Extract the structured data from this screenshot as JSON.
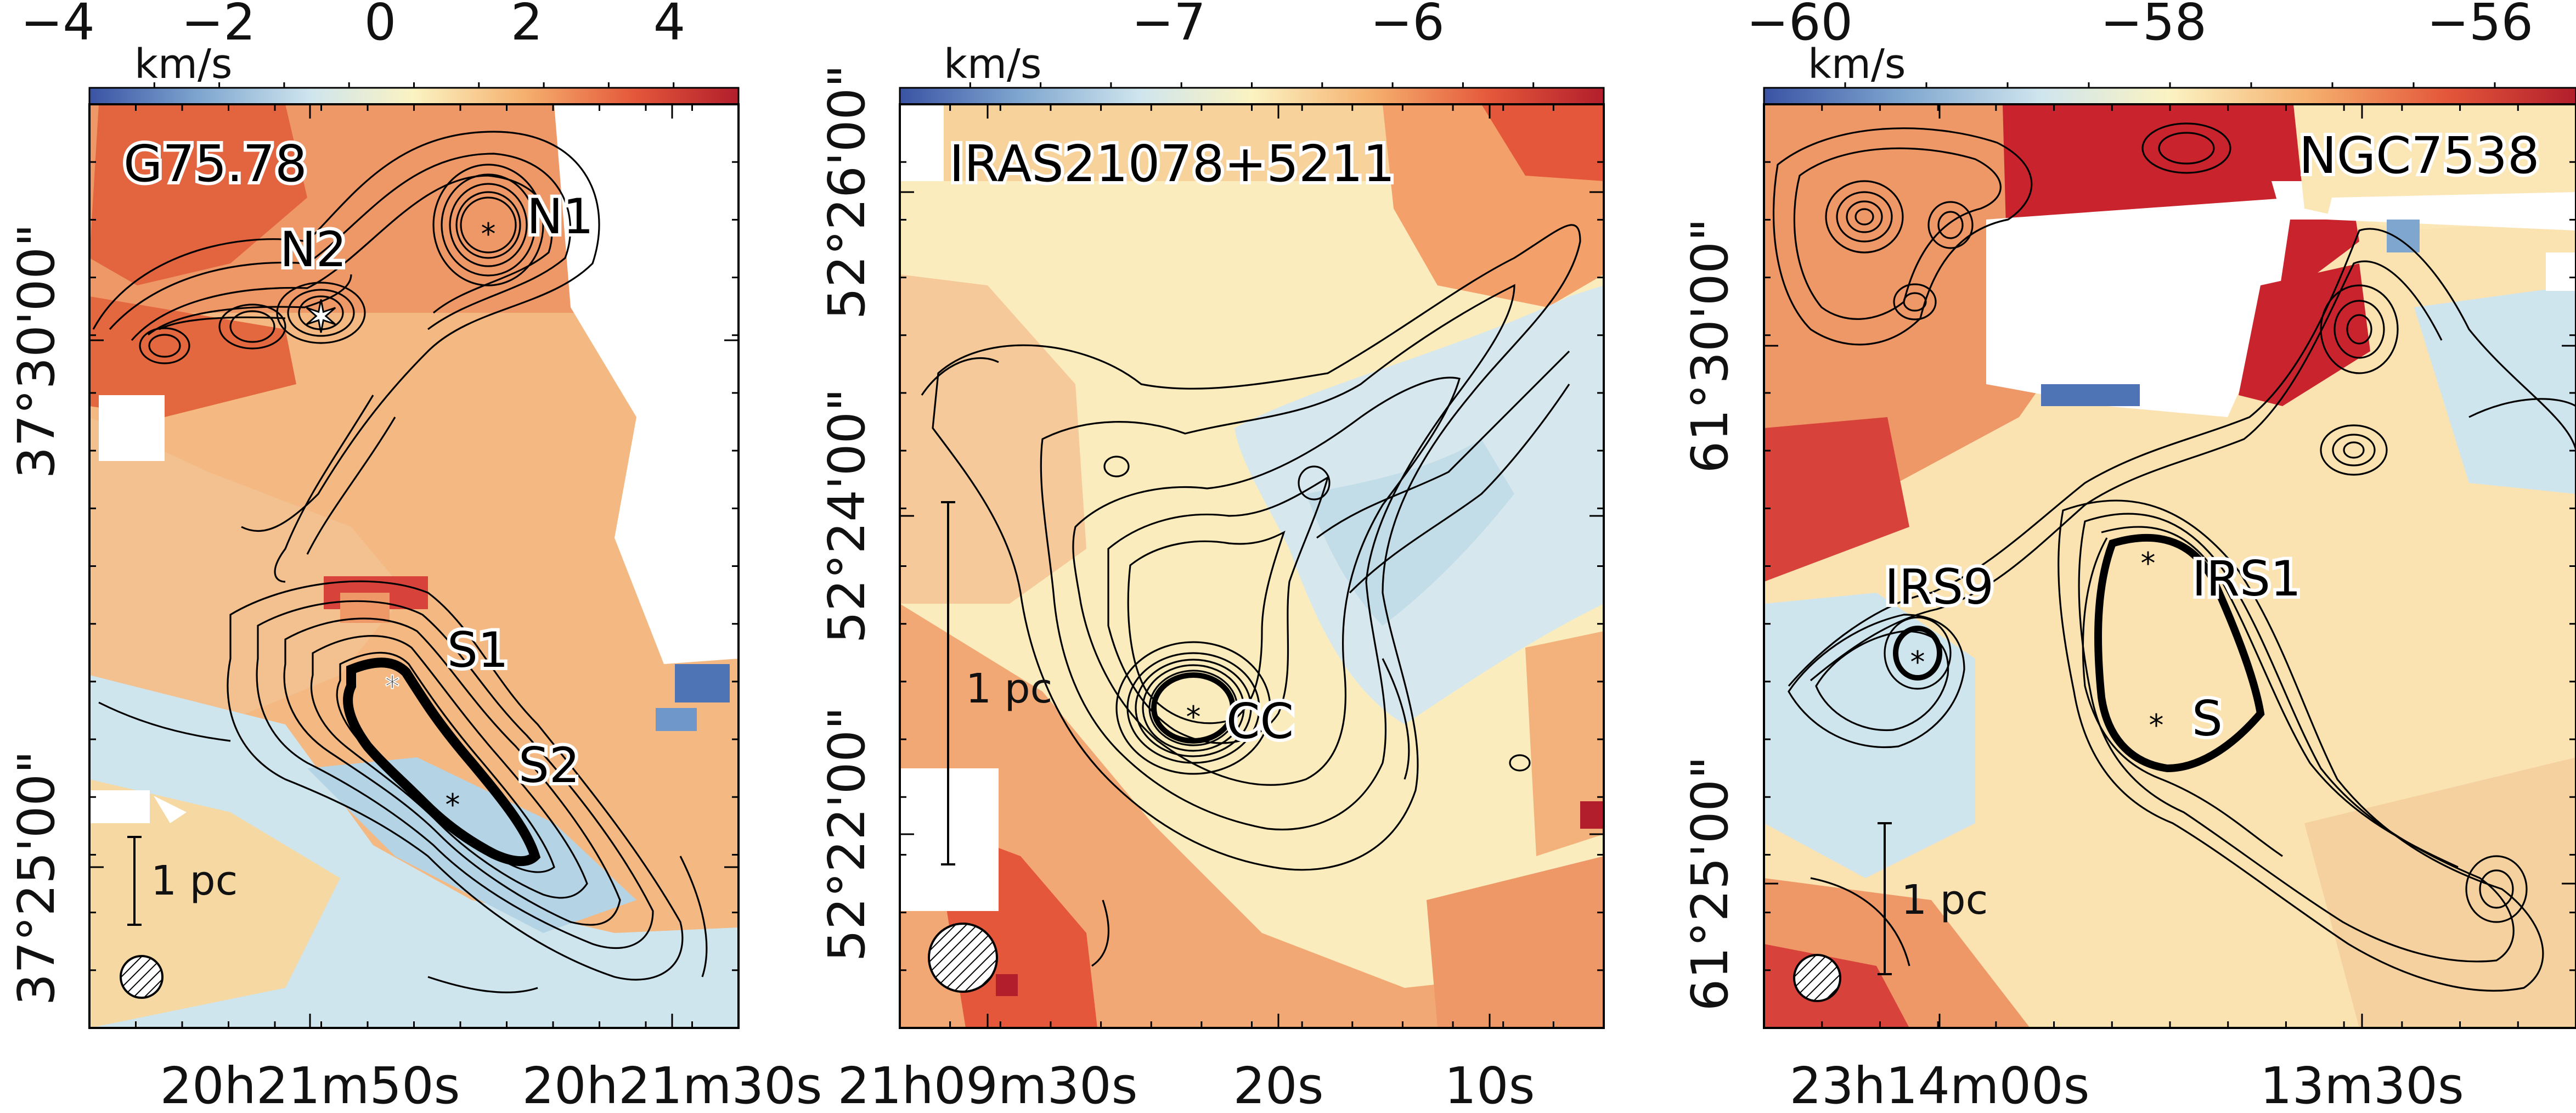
{
  "colorbar_unit": "km/s",
  "panels": [
    {
      "title": "G75.78",
      "colorbar_ticks": [
        "−4",
        "−2",
        "0",
        "2",
        "4"
      ],
      "ra_ticks": [
        "20h21m50s",
        "20h21m30s"
      ],
      "dec_ticks": [
        "37°30'00\"",
        "37°25'00\""
      ],
      "scale_label": "1 pc",
      "sources": [
        "N1",
        "N2",
        "S1",
        "S2"
      ]
    },
    {
      "title": "IRAS21078+5211",
      "colorbar_ticks": [
        "−7",
        "−6"
      ],
      "ra_ticks": [
        "21h09m30s",
        "20s",
        "10s"
      ],
      "dec_ticks": [
        "52°26'00\"",
        "52°24'00\"",
        "52°22'00\""
      ],
      "scale_label": "1 pc",
      "sources": [
        "CC"
      ]
    },
    {
      "title": "NGC7538",
      "colorbar_ticks": [
        "−60",
        "−58",
        "−56"
      ],
      "ra_ticks": [
        "23h14m00s",
        "13m30s"
      ],
      "dec_ticks": [
        "61°30'00\"",
        "61°25'00\""
      ],
      "scale_label": "1 pc",
      "sources": [
        "IRS9",
        "IRS1",
        "S"
      ]
    }
  ],
  "colormap": [
    "#3a53a4",
    "#7fa6cf",
    "#cfe5ee",
    "#fbf3c2",
    "#f5b06e",
    "#e4573a",
    "#b21e2c"
  ]
}
